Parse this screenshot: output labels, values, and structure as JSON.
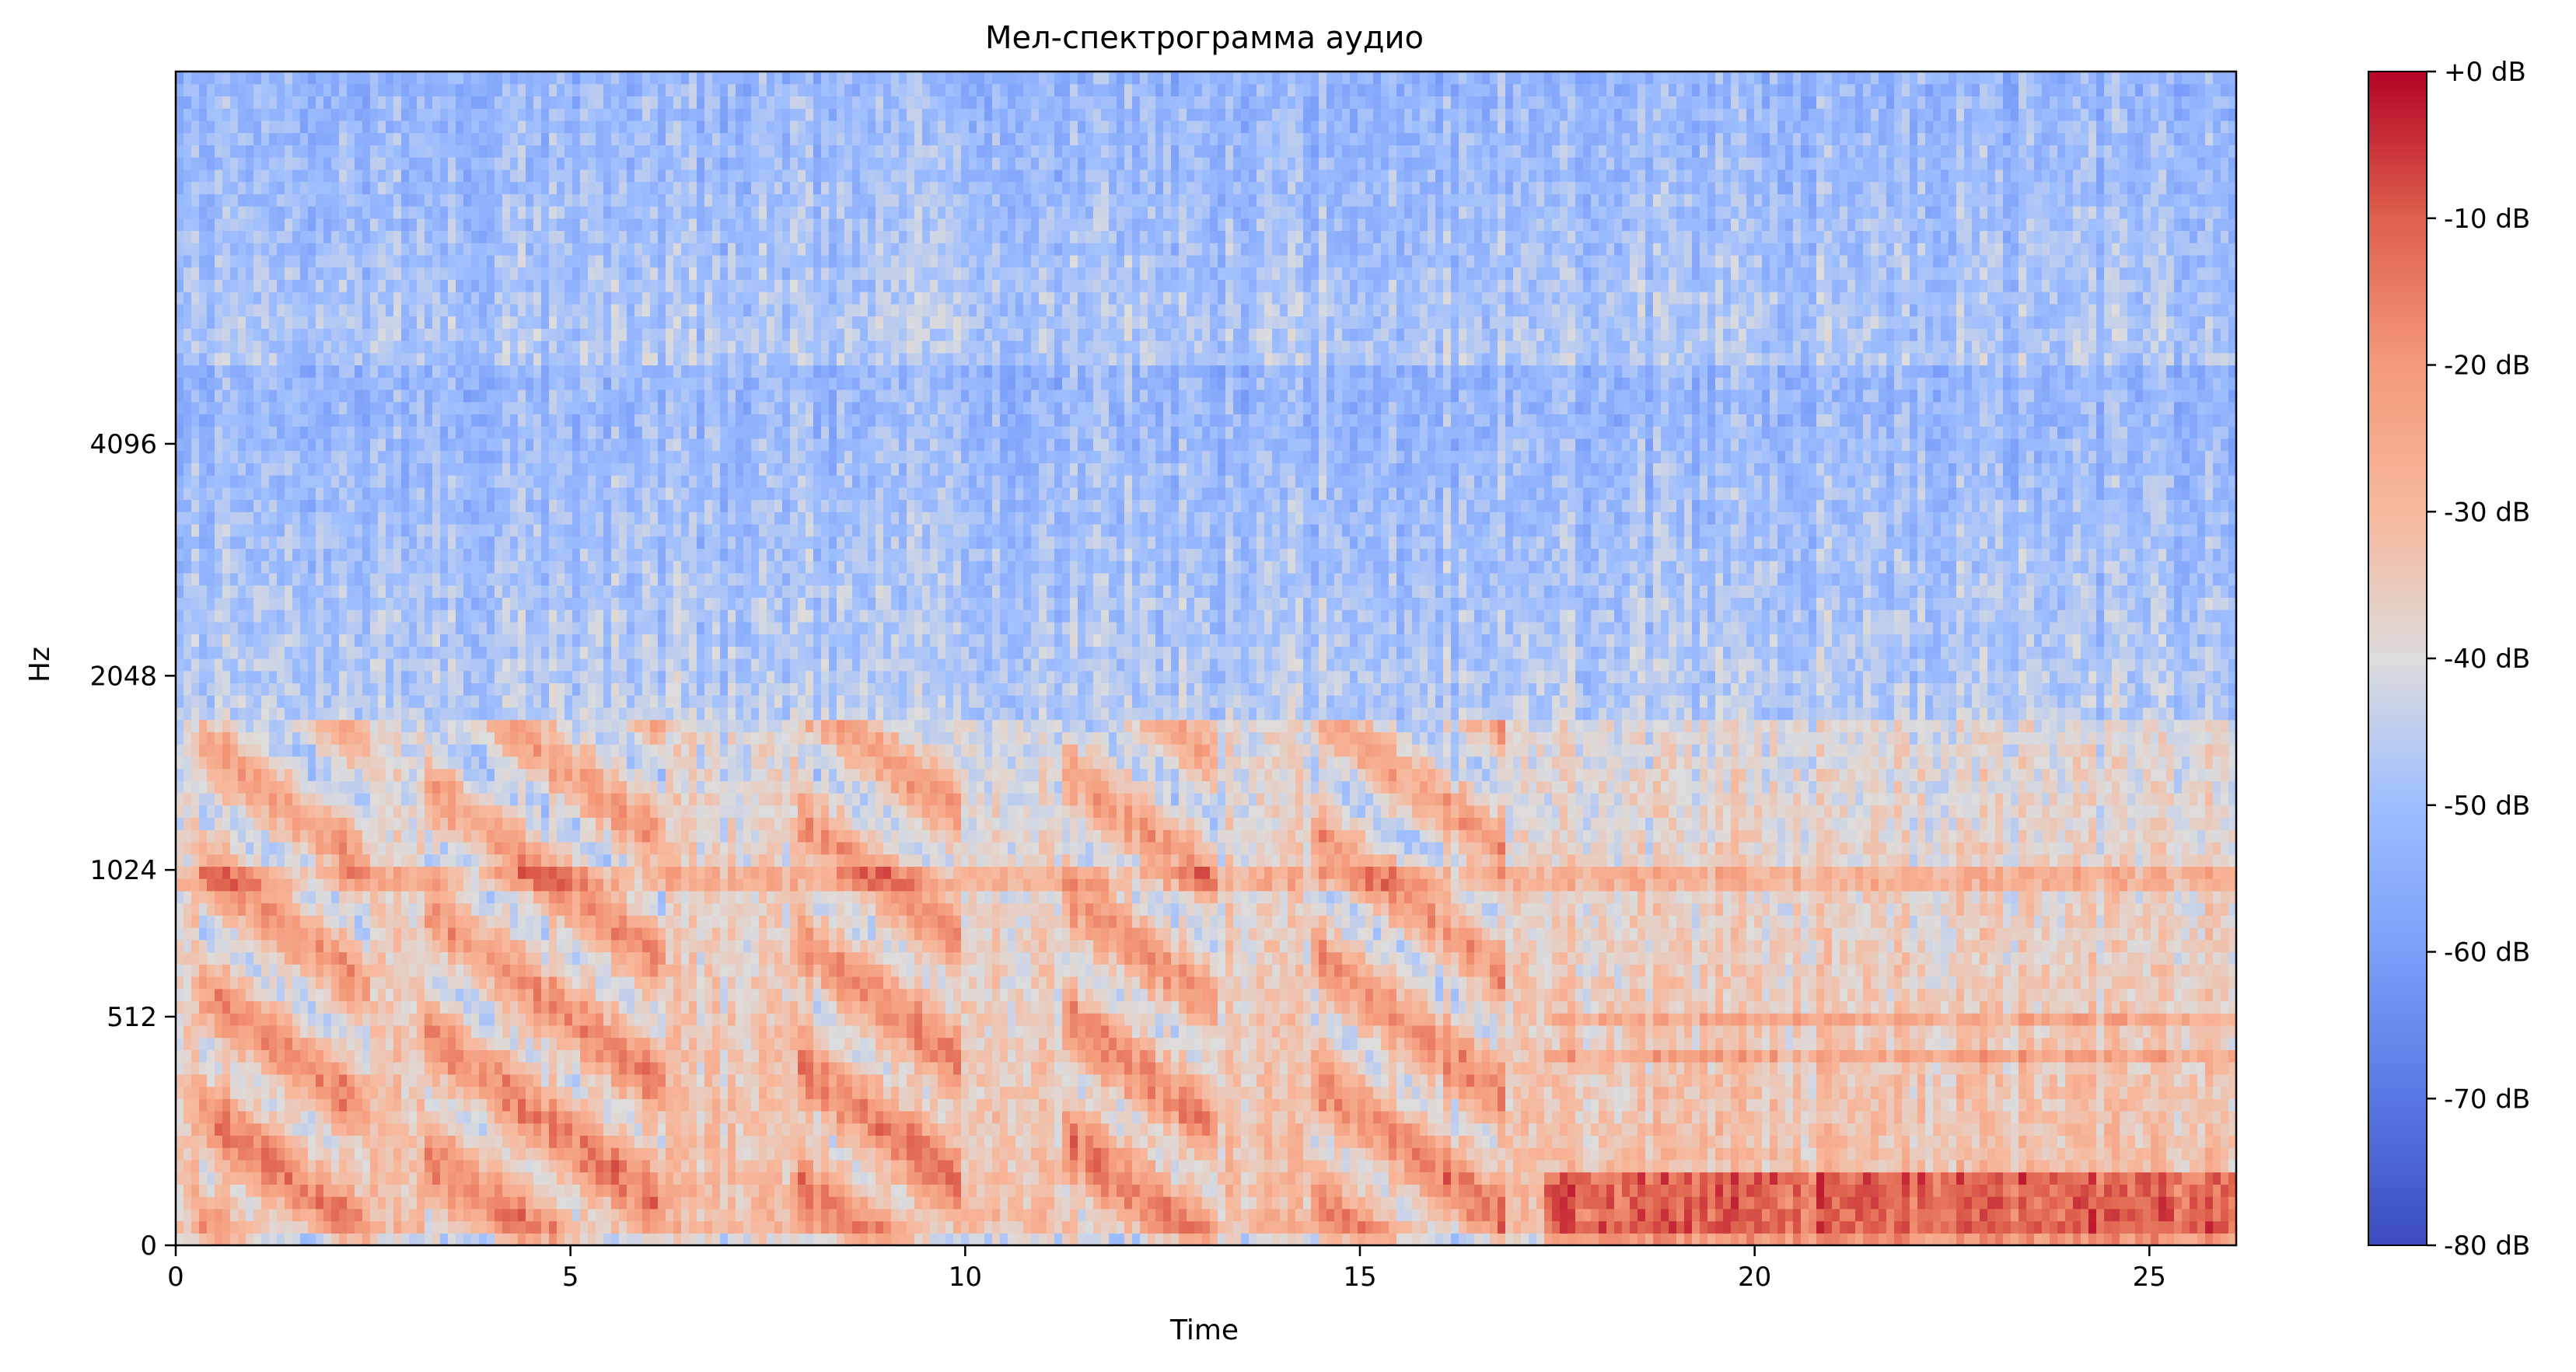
{
  "chart_data": {
    "type": "heatmap",
    "title": "Мел-спектрограмма аудио",
    "xlabel": "Time",
    "ylabel": "Hz",
    "xlim": [
      0,
      26.1
    ],
    "x_ticks": [
      0,
      5,
      10,
      15,
      20,
      25
    ],
    "x_tick_labels": [
      "0",
      "5",
      "10",
      "15",
      "20",
      "25"
    ],
    "y_scale": "mel",
    "y_ticks": [
      0,
      512,
      1024,
      2048,
      4096
    ],
    "y_tick_labels": [
      "0",
      "512",
      "1024",
      "2048",
      "4096"
    ],
    "ylim": [
      0,
      11025
    ],
    "colormap": "coolwarm",
    "colorbar": {
      "range": [
        -80,
        0
      ],
      "ticks": [
        0,
        -10,
        -20,
        -30,
        -40,
        -50,
        -60,
        -70,
        -80
      ],
      "tick_labels": [
        "+0 dB",
        "-10 dB",
        "-20 dB",
        "-30 dB",
        "-40 dB",
        "-50 dB",
        "-60 dB",
        "-70 dB",
        "-80 dB"
      ]
    },
    "colors": {
      "cold": "#3b4cc0",
      "neutral": "#dddddd",
      "hot": "#b40426"
    }
  }
}
